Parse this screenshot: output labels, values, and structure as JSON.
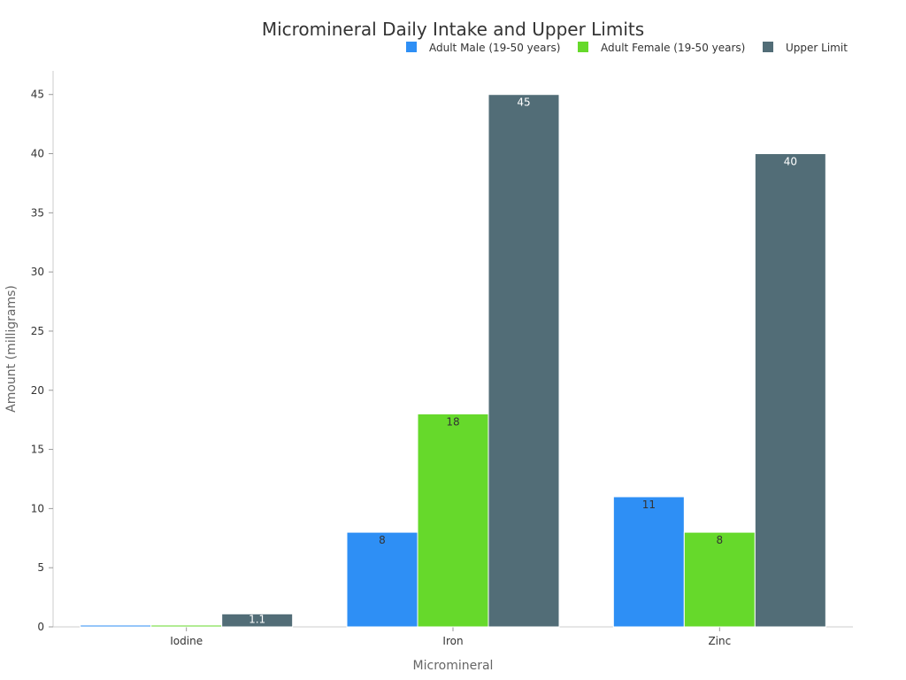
{
  "chart_data": {
    "type": "bar",
    "title": "Micromineral Daily Intake and Upper Limits",
    "xlabel": "Micromineral",
    "ylabel": "Amount (milligrams)",
    "categories": [
      "Iodine",
      "Iron",
      "Zinc"
    ],
    "ylim": [
      0,
      47
    ],
    "yticks": [
      0,
      5,
      10,
      15,
      20,
      25,
      30,
      35,
      40,
      45
    ],
    "grid": false,
    "legend_position": "top-right",
    "series": [
      {
        "name": "Adult Male (19-50 years)",
        "color": "#2E8FF5",
        "label_color": "#333333",
        "values": [
          0.15,
          8,
          11
        ],
        "labels": [
          "",
          "8",
          "11"
        ]
      },
      {
        "name": "Adult Female (19-50 years)",
        "color": "#66D92B",
        "label_color": "#333333",
        "values": [
          0.15,
          18,
          8
        ],
        "labels": [
          "",
          "18",
          "8"
        ]
      },
      {
        "name": "Upper Limit",
        "color": "#526D77",
        "label_color": "#ffffff",
        "values": [
          1.1,
          45,
          40
        ],
        "labels": [
          "1.1",
          "45",
          "40"
        ]
      }
    ]
  }
}
